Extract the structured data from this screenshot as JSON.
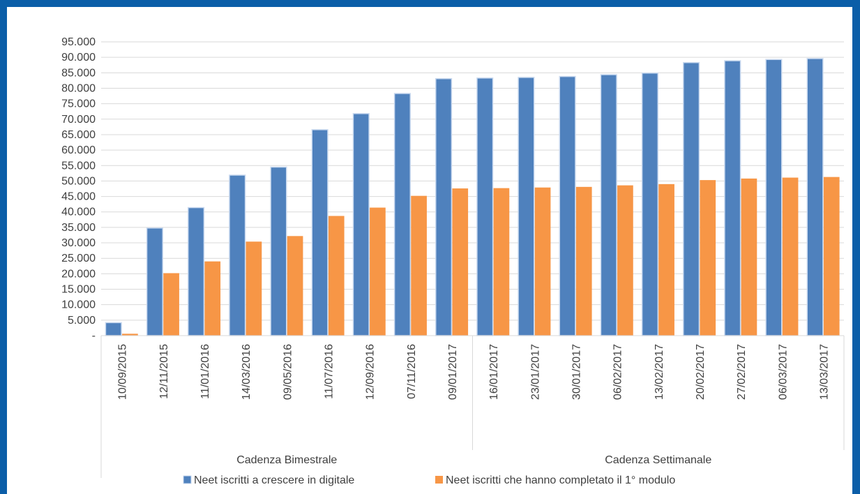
{
  "chart_data": {
    "type": "bar",
    "title": "",
    "xlabel": "",
    "ylabel": "",
    "ylim": [
      0,
      95000
    ],
    "y_ticks": [
      0,
      5000,
      10000,
      15000,
      20000,
      25000,
      30000,
      35000,
      40000,
      45000,
      50000,
      55000,
      60000,
      65000,
      70000,
      75000,
      80000,
      85000,
      90000,
      95000
    ],
    "y_tick_labels": [
      "-",
      "5.000",
      "10.000",
      "15.000",
      "20.000",
      "25.000",
      "30.000",
      "35.000",
      "40.000",
      "45.000",
      "50.000",
      "55.000",
      "60.000",
      "65.000",
      "70.000",
      "75.000",
      "80.000",
      "85.000",
      "90.000",
      "95.000"
    ],
    "grid": true,
    "legend_position": "bottom",
    "categories": [
      "10/09/2015",
      "12/11/2015",
      "11/01/2016",
      "14/03/2016",
      "09/05/2016",
      "11/07/2016",
      "12/09/2016",
      "07/11/2016",
      "09/01/2017",
      "16/01/2017",
      "23/01/2017",
      "30/01/2017",
      "06/02/2017",
      "13/02/2017",
      "20/02/2017",
      "27/02/2017",
      "06/03/2017",
      "13/03/2017"
    ],
    "category_groups": [
      {
        "label": "Cadenza Bimestrale",
        "count": 9
      },
      {
        "label": "Cadenza Settimanale",
        "count": 9
      }
    ],
    "series": [
      {
        "name": "Neet iscritti a crescere in digitale",
        "color": "#4f81bd",
        "values": [
          4200,
          34800,
          41400,
          51900,
          54500,
          66600,
          71800,
          78300,
          83100,
          83300,
          83500,
          83800,
          84400,
          84900,
          88300,
          88900,
          89300,
          89600
        ]
      },
      {
        "name": "Neet iscritti che hanno completato il 1° modulo",
        "color": "#f79646",
        "values": [
          600,
          20200,
          24000,
          30400,
          32200,
          38700,
          41400,
          45200,
          47600,
          47700,
          47900,
          48100,
          48600,
          49000,
          50300,
          50800,
          51100,
          51300
        ]
      }
    ]
  }
}
